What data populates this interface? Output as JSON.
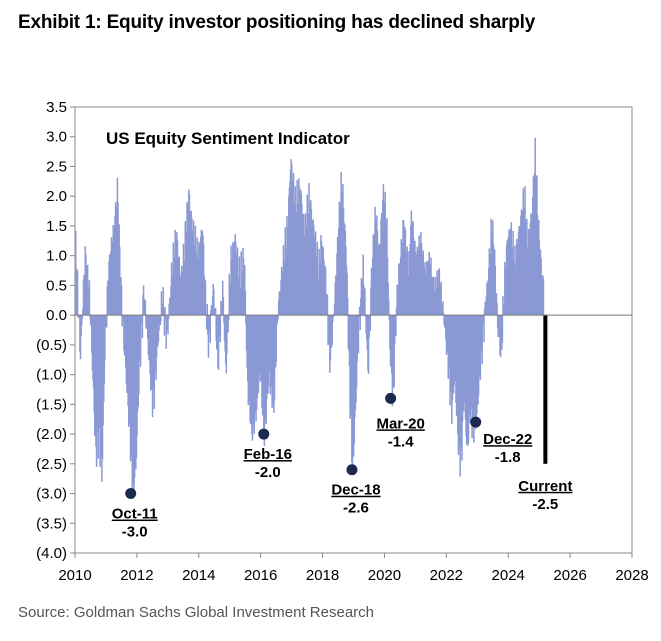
{
  "header": {
    "title": "Exhibit 1: Equity investor positioning has declined sharply"
  },
  "footer": {
    "source": "Source: Goldman Sachs Global Investment Research"
  },
  "colors": {
    "bars": "#8a98d4",
    "current_bar": "#000000",
    "marker": "#1c2a4f",
    "axis": "#808080"
  },
  "chart_data": {
    "type": "bar",
    "title": "US Equity Sentiment Indicator",
    "xlabel": "",
    "ylabel": "",
    "xlim": [
      2010,
      2028
    ],
    "ylim": [
      -4.0,
      3.5
    ],
    "x_ticks": [
      {
        "value": 2010,
        "label": "2010"
      },
      {
        "value": 2012,
        "label": "2012"
      },
      {
        "value": 2014,
        "label": "2014"
      },
      {
        "value": 2016,
        "label": "2016"
      },
      {
        "value": 2018,
        "label": "2018"
      },
      {
        "value": 2020,
        "label": "2020"
      },
      {
        "value": 2022,
        "label": "2022"
      },
      {
        "value": 2024,
        "label": "2024"
      },
      {
        "value": 2026,
        "label": "2026"
      },
      {
        "value": 2028,
        "label": "2028"
      }
    ],
    "y_ticks": [
      {
        "value": 3.5,
        "label": "3.5"
      },
      {
        "value": 3.0,
        "label": "3.0"
      },
      {
        "value": 2.5,
        "label": "2.5"
      },
      {
        "value": 2.0,
        "label": "2.0"
      },
      {
        "value": 1.5,
        "label": "1.5"
      },
      {
        "value": 1.0,
        "label": "1.0"
      },
      {
        "value": 0.5,
        "label": "0.5"
      },
      {
        "value": 0.0,
        "label": "0.0"
      },
      {
        "value": -0.5,
        "label": "(0.5)"
      },
      {
        "value": -1.0,
        "label": "(1.0)"
      },
      {
        "value": -1.5,
        "label": "(1.5)"
      },
      {
        "value": -2.0,
        "label": "(2.0)"
      },
      {
        "value": -2.5,
        "label": "(2.5)"
      },
      {
        "value": -3.0,
        "label": "(3.0)"
      },
      {
        "value": -3.5,
        "label": "(3.5)"
      },
      {
        "value": -4.0,
        "label": "(4.0)"
      }
    ],
    "grid": false,
    "keypoints": [
      [
        2010.0,
        1.2
      ],
      [
        2010.15,
        -0.7
      ],
      [
        2010.3,
        1.0
      ],
      [
        2010.45,
        0.3
      ],
      [
        2010.55,
        -1.0
      ],
      [
        2010.65,
        -2.3
      ],
      [
        2010.75,
        -2.0
      ],
      [
        2010.85,
        -2.7
      ],
      [
        2010.95,
        -0.5
      ],
      [
        2011.05,
        0.6
      ],
      [
        2011.2,
        1.3
      ],
      [
        2011.35,
        2.1
      ],
      [
        2011.45,
        0.6
      ],
      [
        2011.55,
        -0.4
      ],
      [
        2011.65,
        -1.2
      ],
      [
        2011.75,
        -1.9
      ],
      [
        2011.85,
        -3.0
      ],
      [
        2011.95,
        -2.5
      ],
      [
        2012.05,
        -1.0
      ],
      [
        2012.2,
        0.4
      ],
      [
        2012.35,
        -0.6
      ],
      [
        2012.5,
        -1.5
      ],
      [
        2012.65,
        -0.5
      ],
      [
        2012.8,
        0.3
      ],
      [
        2012.95,
        -0.4
      ],
      [
        2013.1,
        0.7
      ],
      [
        2013.25,
        1.3
      ],
      [
        2013.4,
        0.6
      ],
      [
        2013.5,
        1.0
      ],
      [
        2013.65,
        2.0
      ],
      [
        2013.8,
        1.4
      ],
      [
        2013.95,
        0.9
      ],
      [
        2014.1,
        1.5
      ],
      [
        2014.2,
        0.2
      ],
      [
        2014.3,
        -0.5
      ],
      [
        2014.45,
        0.5
      ],
      [
        2014.6,
        -0.8
      ],
      [
        2014.75,
        0.5
      ],
      [
        2014.85,
        -1.0
      ],
      [
        2015.0,
        0.8
      ],
      [
        2015.15,
        1.3
      ],
      [
        2015.3,
        0.6
      ],
      [
        2015.45,
        1.0
      ],
      [
        2015.55,
        -1.2
      ],
      [
        2015.7,
        -1.9
      ],
      [
        2015.85,
        -1.6
      ],
      [
        2015.95,
        -0.8
      ],
      [
        2016.1,
        -2.0
      ],
      [
        2016.25,
        -1.0
      ],
      [
        2016.4,
        -1.5
      ],
      [
        2016.55,
        0.2
      ],
      [
        2016.7,
        0.8
      ],
      [
        2016.85,
        1.5
      ],
      [
        2016.95,
        2.6
      ],
      [
        2017.1,
        1.8
      ],
      [
        2017.25,
        2.2
      ],
      [
        2017.4,
        1.3
      ],
      [
        2017.55,
        2.0
      ],
      [
        2017.7,
        1.4
      ],
      [
        2017.85,
        0.7
      ],
      [
        2017.95,
        1.3
      ],
      [
        2018.1,
        0.5
      ],
      [
        2018.2,
        -0.8
      ],
      [
        2018.3,
        -0.3
      ],
      [
        2018.45,
        1.0
      ],
      [
        2018.6,
        2.3
      ],
      [
        2018.75,
        1.0
      ],
      [
        2018.85,
        -1.2
      ],
      [
        2018.95,
        -2.6
      ],
      [
        2019.05,
        -1.5
      ],
      [
        2019.15,
        -0.2
      ],
      [
        2019.3,
        0.8
      ],
      [
        2019.45,
        -1.0
      ],
      [
        2019.55,
        0.5
      ],
      [
        2019.7,
        1.8
      ],
      [
        2019.8,
        1.0
      ],
      [
        2019.95,
        2.0
      ],
      [
        2020.05,
        1.6
      ],
      [
        2020.15,
        -0.5
      ],
      [
        2020.25,
        -1.4
      ],
      [
        2020.35,
        0.0
      ],
      [
        2020.45,
        0.8
      ],
      [
        2020.6,
        1.5
      ],
      [
        2020.75,
        0.7
      ],
      [
        2020.85,
        1.7
      ],
      [
        2021.0,
        0.8
      ],
      [
        2021.15,
        1.3
      ],
      [
        2021.3,
        0.6
      ],
      [
        2021.45,
        0.9
      ],
      [
        2021.6,
        0.4
      ],
      [
        2021.75,
        0.6
      ],
      [
        2021.85,
        0.2
      ],
      [
        2021.95,
        -0.3
      ],
      [
        2022.05,
        -0.8
      ],
      [
        2022.15,
        -1.6
      ],
      [
        2022.25,
        -1.0
      ],
      [
        2022.35,
        -2.0
      ],
      [
        2022.45,
        -2.5
      ],
      [
        2022.55,
        -1.3
      ],
      [
        2022.65,
        -2.3
      ],
      [
        2022.75,
        -1.5
      ],
      [
        2022.85,
        -1.9
      ],
      [
        2022.95,
        -1.8
      ],
      [
        2023.05,
        -1.0
      ],
      [
        2023.15,
        -0.4
      ],
      [
        2023.3,
        0.5
      ],
      [
        2023.45,
        1.5
      ],
      [
        2023.55,
        0.8
      ],
      [
        2023.65,
        -0.3
      ],
      [
        2023.75,
        -0.7
      ],
      [
        2023.85,
        0.5
      ],
      [
        2023.95,
        1.2
      ],
      [
        2024.05,
        1.5
      ],
      [
        2024.2,
        0.8
      ],
      [
        2024.35,
        1.5
      ],
      [
        2024.5,
        2.0
      ],
      [
        2024.6,
        1.1
      ],
      [
        2024.75,
        1.8
      ],
      [
        2024.85,
        2.7
      ],
      [
        2024.95,
        1.4
      ],
      [
        2025.05,
        0.8
      ],
      [
        2025.12,
        0.5
      ]
    ],
    "highlight_points": [
      {
        "x": 2011.8,
        "y": -3.0,
        "date": "Oct-11",
        "value": "-3.0"
      },
      {
        "x": 2016.1,
        "y": -2.0,
        "date": "Feb-16",
        "value": "-2.0"
      },
      {
        "x": 2018.95,
        "y": -2.6,
        "date": "Dec-18",
        "value": "-2.6"
      },
      {
        "x": 2020.2,
        "y": -1.4,
        "date": "Mar-20",
        "value": "-1.4"
      },
      {
        "x": 2022.95,
        "y": -1.8,
        "date": "Dec-22",
        "value": "-1.8"
      }
    ],
    "current": {
      "x": 2025.2,
      "y": -2.5,
      "label": "Current",
      "value": "-2.5"
    }
  }
}
